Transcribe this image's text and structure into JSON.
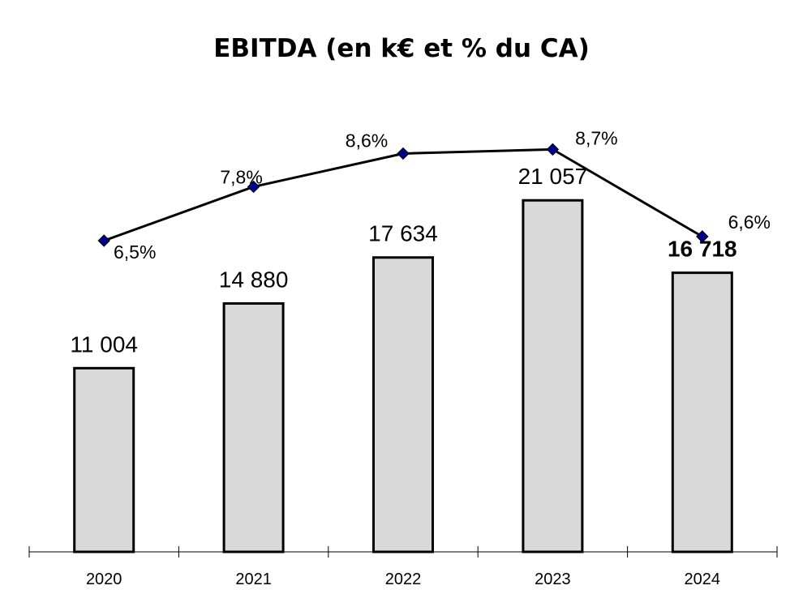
{
  "chart_data": {
    "type": "bar",
    "title": "EBITDA (en k€ et % du CA)",
    "xlabel": "",
    "ylabel": "",
    "categories": [
      "2020",
      "2021",
      "2022",
      "2023",
      "2024"
    ],
    "series": [
      {
        "values": [
          11004,
          14880,
          17634,
          21057,
          16718
        ],
        "value_labels": [
          "11 004",
          "14 880",
          "17 634",
          "21 057",
          "16 718"
        ],
        "bold_labels": [
          false,
          false,
          false,
          false,
          true
        ],
        "color": "#d9d9d9",
        "stroke": "#000000"
      },
      {
        "type": "line",
        "values": [
          6.5,
          7.8,
          8.6,
          8.7,
          6.6
        ],
        "value_labels": [
          "6,5%",
          "7,8%",
          "8,6%",
          "8,7%",
          "6,6%"
        ],
        "line_color": "#000000",
        "marker": "diamond",
        "marker_color": "#00008b"
      }
    ],
    "grid": false,
    "legend": "none"
  }
}
